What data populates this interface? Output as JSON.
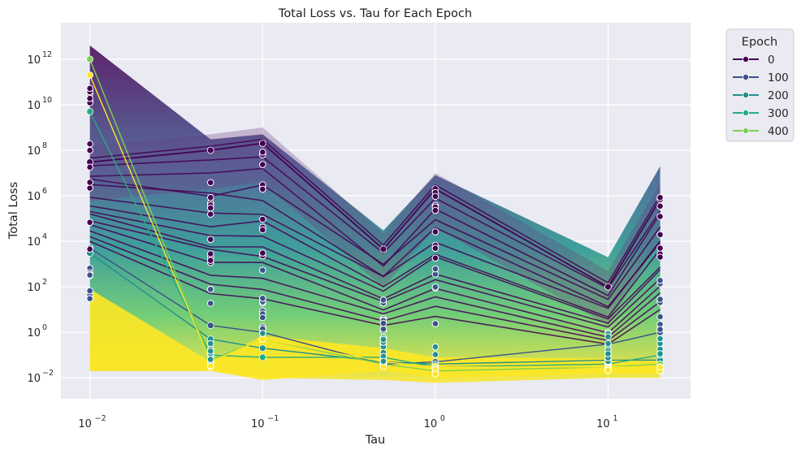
{
  "chart_data": {
    "type": "line",
    "title": "Total Loss vs. Tau for Each Epoch",
    "xlabel": "Tau",
    "ylabel": "Total Loss",
    "x_scale": "log",
    "y_scale": "log",
    "xlim": [
      0.0068,
      30
    ],
    "ylim": [
      0.0012,
      40000000000000.0
    ],
    "grid": true,
    "x": [
      0.01,
      0.05,
      0.1,
      0.5,
      1,
      10,
      20
    ],
    "x_ticks": [
      {
        "value": 0.01,
        "base": "10",
        "exp": "−2"
      },
      {
        "value": 0.1,
        "base": "10",
        "exp": "−1"
      },
      {
        "value": 1,
        "base": "10",
        "exp": "0"
      },
      {
        "value": 10,
        "base": "10",
        "exp": "1"
      }
    ],
    "y_ticks": [
      {
        "value": 0.01,
        "base": "10",
        "exp": "−2"
      },
      {
        "value": 1,
        "base": "10",
        "exp": "0"
      },
      {
        "value": 100,
        "base": "10",
        "exp": "2"
      },
      {
        "value": 10000,
        "base": "10",
        "exp": "4"
      },
      {
        "value": 1000000,
        "base": "10",
        "exp": "6"
      },
      {
        "value": 100000000,
        "base": "10",
        "exp": "8"
      },
      {
        "value": 10000000000,
        "base": "10",
        "exp": "10"
      },
      {
        "value": 1000000000000,
        "base": "10",
        "exp": "12"
      }
    ],
    "legend": {
      "title": "Epoch",
      "placement": "outside right",
      "entries": [
        {
          "label": "0",
          "color": "#440154"
        },
        {
          "label": "100",
          "color": "#3b528b"
        },
        {
          "label": "200",
          "color": "#21918c"
        },
        {
          "label": "300",
          "color": "#25ab82"
        },
        {
          "label": "400",
          "color": "#7ad151"
        }
      ]
    },
    "series": [
      {
        "name": "0",
        "color": "#440154",
        "values": [
          30000000,
          100000000,
          200000000,
          4500,
          2000000,
          100,
          700000
        ]
      },
      {
        "name": "100",
        "color": "#3b528b",
        "values": [
          5000,
          2,
          1,
          0.04,
          0.05,
          0.3,
          1
        ]
      },
      {
        "name": "200",
        "color": "#21918c",
        "values": [
          3000,
          0.5,
          0.2,
          0.05,
          0.04,
          0.06,
          0.06
        ]
      },
      {
        "name": "300",
        "color": "#25ab82",
        "values": [
          5000000000,
          0.1,
          0.08,
          0.08,
          0.03,
          0.04,
          0.1
        ]
      },
      {
        "name": "400",
        "color": "#7ad151",
        "values": [
          1000000000000,
          0.06,
          0.5,
          0.04,
          0.02,
          0.03,
          0.04
        ]
      },
      {
        "name": "",
        "color": "#fde725",
        "values": [
          200000000000,
          0.05,
          0.5,
          0.05,
          0.03,
          0.03,
          0.03
        ]
      }
    ],
    "colors": {
      "background": "#eaeaf2",
      "grid": "#ffffff",
      "band_top": "#440154",
      "band_bottom": "#fde725"
    }
  }
}
